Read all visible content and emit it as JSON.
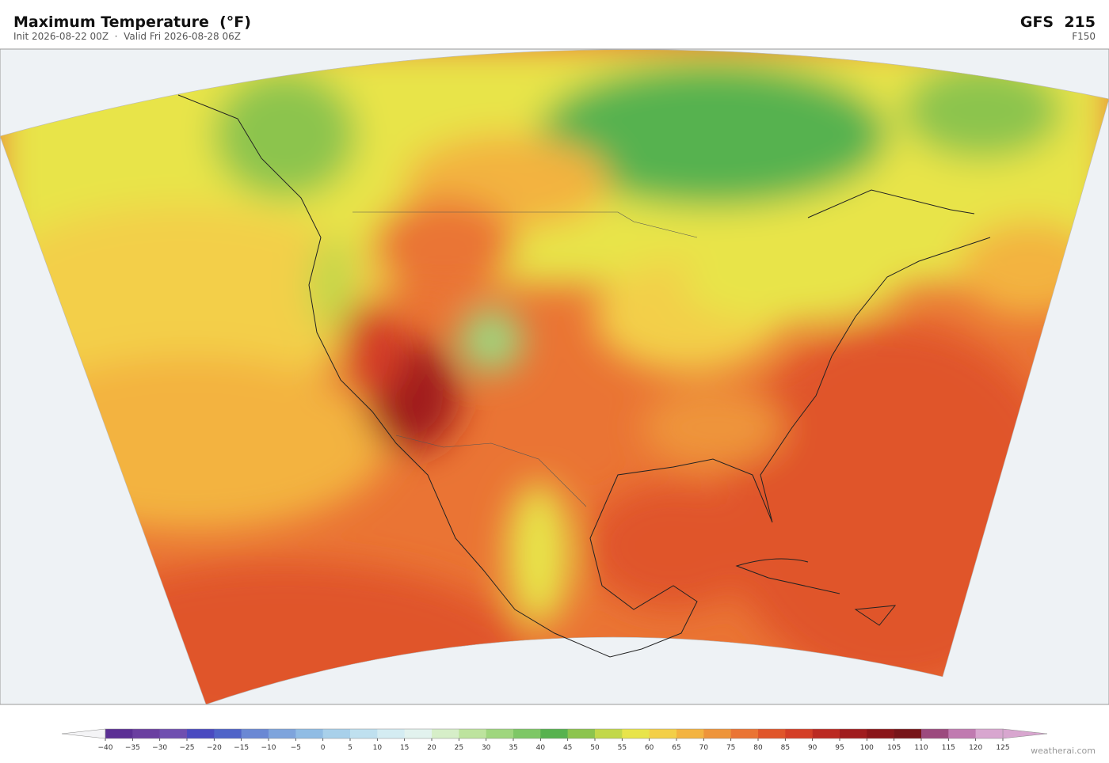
{
  "header": {
    "title": "Maximum Temperature  (°F)",
    "subtitle": "Init 2026-08-22 00Z  ·  Valid Fri 2026-08-28 06Z",
    "model": "GFS  215",
    "forecast_hour": "F150"
  },
  "colorbar": {
    "ticks": [
      {
        "value": -40,
        "label": "−40"
      },
      {
        "value": -35,
        "label": "−35"
      },
      {
        "value": -30,
        "label": "−30"
      },
      {
        "value": -25,
        "label": "−25"
      },
      {
        "value": -20,
        "label": "−20"
      },
      {
        "value": -15,
        "label": "−15"
      },
      {
        "value": -10,
        "label": "−10"
      },
      {
        "value": -5,
        "label": "−5"
      },
      0,
      5,
      10,
      15,
      20,
      25,
      30,
      35,
      40,
      45,
      50,
      55,
      60,
      65,
      70,
      75,
      80,
      85,
      90,
      95,
      100,
      105,
      110,
      115,
      120,
      125
    ],
    "colors": [
      "#5b2f94",
      "#6a3fa0",
      "#6f4fb0",
      "#4a4ac0",
      "#4f63c8",
      "#6a88d4",
      "#7ea4dc",
      "#90bce4",
      "#a8d0ea",
      "#bfe0ef",
      "#d4ecf2",
      "#e2f2ee",
      "#d6eec8",
      "#bde39e",
      "#9fd67e",
      "#7ec766",
      "#57b24f",
      "#8cc44e",
      "#c2d84a",
      "#e8e44a",
      "#f3cf48",
      "#f3b340",
      "#ee943a",
      "#ea7434",
      "#e0552a",
      "#d43e26",
      "#bb2a22",
      "#a01c1e",
      "#8a1519",
      "#771418",
      "#9c4a7e",
      "#c07ab0",
      "#d8a6cf"
    ],
    "under_color": "#f4f4f6",
    "over_color": "#d8a6cf"
  },
  "footer": {
    "credit": "weatherai.com"
  }
}
